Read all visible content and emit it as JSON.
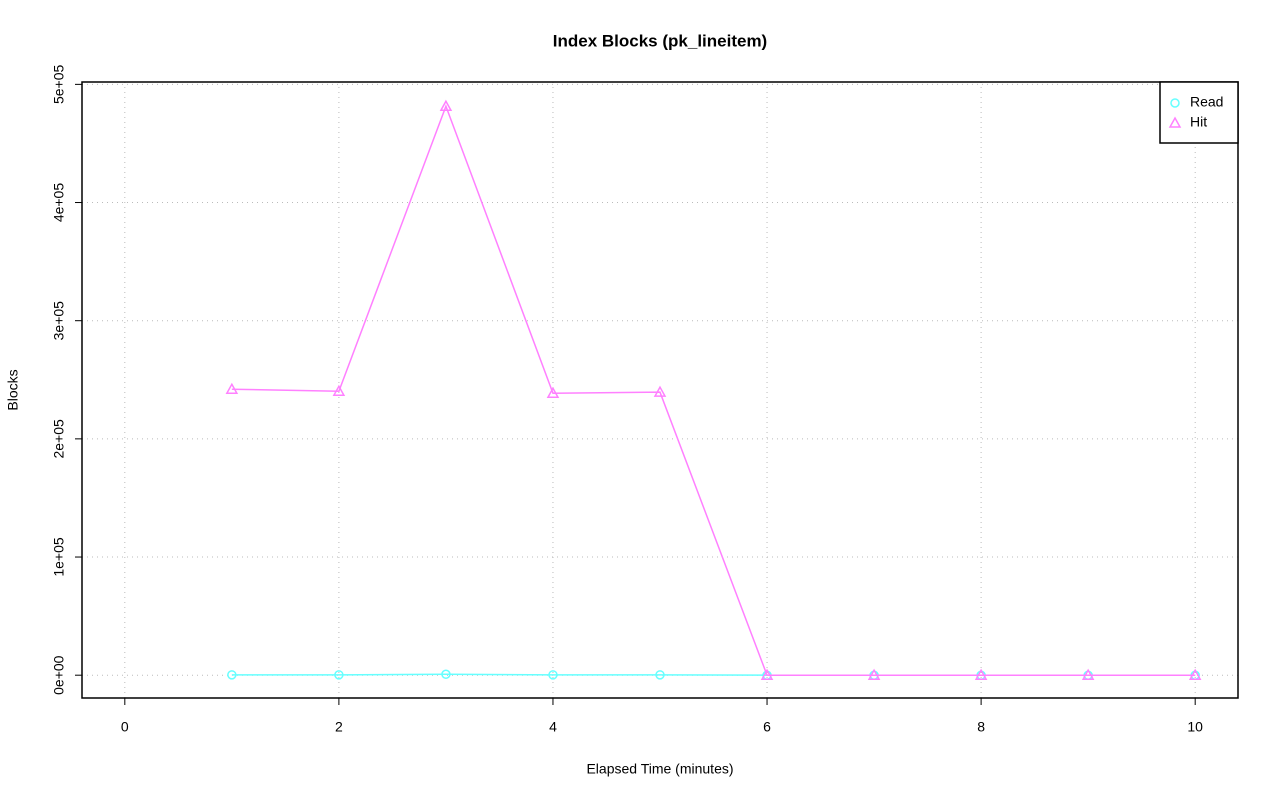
{
  "chart_data": {
    "type": "line",
    "title": "Index Blocks (pk_lineitem)",
    "x_label": "Elapsed Time (minutes)",
    "y_label": "Blocks",
    "x": [
      1,
      2,
      3,
      4,
      5,
      6,
      7,
      8,
      9,
      10
    ],
    "series": [
      {
        "name": "Read",
        "color": "#66ffff",
        "marker": "circle",
        "values": [
          300,
          300,
          800,
          300,
          300,
          0,
          0,
          0,
          0,
          0
        ]
      },
      {
        "name": "Hit",
        "color": "#ff80ff",
        "marker": "triangle",
        "values": [
          242000,
          240300,
          481500,
          238600,
          239500,
          0,
          0,
          0,
          0,
          0
        ]
      }
    ],
    "xlim": [
      -0.4,
      10.4
    ],
    "xticks": [
      0,
      2,
      4,
      6,
      8,
      10
    ],
    "ylim": [
      -19300,
      502000
    ],
    "yticks": [
      {
        "value": 0,
        "label": "0e+00"
      },
      {
        "value": 100000,
        "label": "1e+05"
      },
      {
        "value": 200000,
        "label": "2e+05"
      },
      {
        "value": 300000,
        "label": "3e+05"
      },
      {
        "value": 400000,
        "label": "4e+05"
      },
      {
        "value": 500000,
        "label": "5e+05"
      }
    ],
    "grid": true,
    "legend": "top-right"
  }
}
